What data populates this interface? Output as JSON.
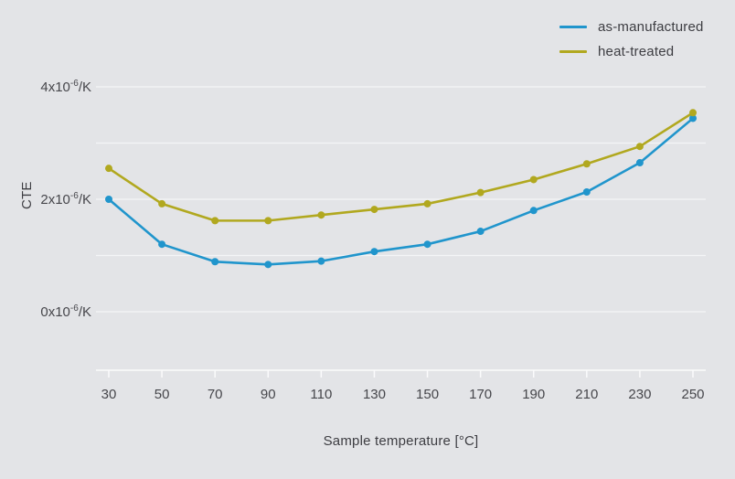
{
  "chart_data": {
    "type": "line",
    "title": "",
    "xlabel": "Sample temperature [°C]",
    "ylabel": "CTE",
    "x": [
      30,
      50,
      70,
      90,
      110,
      130,
      150,
      170,
      190,
      210,
      230,
      250
    ],
    "series": [
      {
        "name": "as-manufactured",
        "color": "#2095cc",
        "values": [
          2.0,
          1.2,
          0.89,
          0.84,
          0.9,
          1.07,
          1.2,
          1.43,
          1.8,
          2.13,
          2.65,
          3.44
        ]
      },
      {
        "name": "heat-treated",
        "color": "#b1a81f",
        "values": [
          2.55,
          1.92,
          1.62,
          1.62,
          1.72,
          1.82,
          1.92,
          2.12,
          2.35,
          2.63,
          2.94,
          3.54
        ]
      }
    ],
    "ylim": [
      0,
      4
    ],
    "xlim": [
      30,
      250
    ],
    "y_grid_ticks": [
      0,
      1,
      2,
      3,
      4
    ],
    "y_tick_labels": [
      {
        "value": 0,
        "mantissa": "0x10",
        "exp": "-6",
        "unit": "/K"
      },
      {
        "value": 2,
        "mantissa": "2x10",
        "exp": "-6",
        "unit": "/K"
      },
      {
        "value": 4,
        "mantissa": "4x10",
        "exp": "-6",
        "unit": "/K"
      }
    ],
    "grid": true,
    "legend_position": "top-right",
    "colors": {
      "background": "#e3e4e7",
      "gridline": "#f4f5f7",
      "axis": "#fbfbfc",
      "text": "#46464b"
    }
  }
}
